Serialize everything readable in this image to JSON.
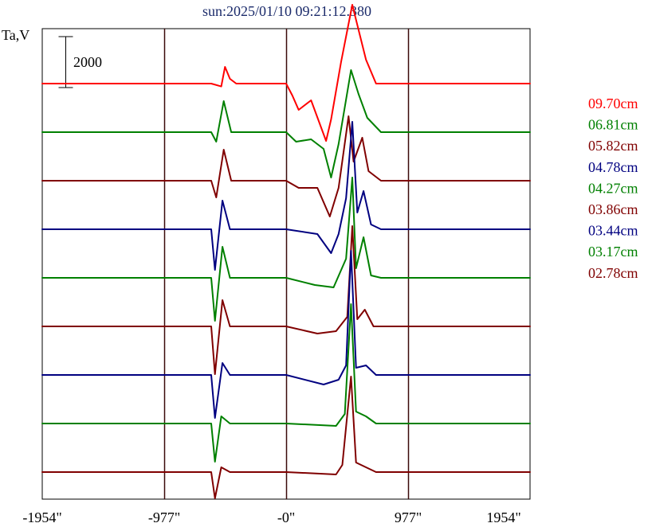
{
  "chart_data": {
    "type": "line",
    "title": "sun:2025/01/10 09:21:12.380",
    "ylabel": "Ta,V",
    "scale_bar_label": "2000",
    "scale_bar_value": 2000,
    "xlim": [
      -1954,
      1954
    ],
    "x_ticks": [
      {
        "value": -1954,
        "label": "-1954\""
      },
      {
        "value": -977,
        "label": "-977\""
      },
      {
        "value": 0,
        "label": "-0\""
      },
      {
        "value": 977,
        "label": "977\""
      },
      {
        "value": 1954,
        "label": "1954\""
      }
    ],
    "vertical_lines": [
      -977,
      0,
      977
    ],
    "grid": false,
    "legend": "right",
    "series": [
      {
        "name": "09.70cm",
        "color": "#ff0000",
        "points": [
          [
            -1954,
            0
          ],
          [
            -1000,
            0
          ],
          [
            -600,
            0
          ],
          [
            -520,
            -120
          ],
          [
            -490,
            700
          ],
          [
            -450,
            200
          ],
          [
            -400,
            0
          ],
          [
            0,
            0
          ],
          [
            50,
            -500
          ],
          [
            100,
            -1100
          ],
          [
            200,
            -700
          ],
          [
            320,
            -2400
          ],
          [
            360,
            -1500
          ],
          [
            440,
            900
          ],
          [
            530,
            3300
          ],
          [
            640,
            1000
          ],
          [
            720,
            0
          ],
          [
            1954,
            0
          ]
        ]
      },
      {
        "name": "06.81cm",
        "color": "#008000",
        "points": [
          [
            -1954,
            0
          ],
          [
            -600,
            0
          ],
          [
            -560,
            -400
          ],
          [
            -500,
            1300
          ],
          [
            -440,
            0
          ],
          [
            0,
            0
          ],
          [
            80,
            -400
          ],
          [
            200,
            -300
          ],
          [
            300,
            -700
          ],
          [
            360,
            -1900
          ],
          [
            420,
            -500
          ],
          [
            520,
            2600
          ],
          [
            580,
            1600
          ],
          [
            650,
            600
          ],
          [
            760,
            0
          ],
          [
            1954,
            0
          ]
        ]
      },
      {
        "name": "05.82cm",
        "color": "#800000",
        "points": [
          [
            -1954,
            0
          ],
          [
            -600,
            0
          ],
          [
            -560,
            -700
          ],
          [
            -500,
            1300
          ],
          [
            -440,
            0
          ],
          [
            0,
            0
          ],
          [
            100,
            -300
          ],
          [
            250,
            -300
          ],
          [
            350,
            -1500
          ],
          [
            420,
            -300
          ],
          [
            500,
            2700
          ],
          [
            540,
            800
          ],
          [
            610,
            1800
          ],
          [
            660,
            400
          ],
          [
            760,
            0
          ],
          [
            1954,
            0
          ]
        ]
      },
      {
        "name": "04.78cm",
        "color": "#000080",
        "points": [
          [
            -1954,
            0
          ],
          [
            -600,
            0
          ],
          [
            -570,
            -1700
          ],
          [
            -510,
            1200
          ],
          [
            -450,
            0
          ],
          [
            0,
            0
          ],
          [
            250,
            -200
          ],
          [
            360,
            -1000
          ],
          [
            420,
            -200
          ],
          [
            480,
            1300
          ],
          [
            530,
            4500
          ],
          [
            570,
            700
          ],
          [
            620,
            1600
          ],
          [
            680,
            200
          ],
          [
            760,
            0
          ],
          [
            1954,
            0
          ]
        ]
      },
      {
        "name": "04.27cm",
        "color": "#008000",
        "points": [
          [
            -1954,
            0
          ],
          [
            -600,
            0
          ],
          [
            -570,
            -1800
          ],
          [
            -510,
            1300
          ],
          [
            -450,
            0
          ],
          [
            0,
            0
          ],
          [
            230,
            -300
          ],
          [
            380,
            -400
          ],
          [
            480,
            800
          ],
          [
            530,
            4200
          ],
          [
            560,
            400
          ],
          [
            620,
            1700
          ],
          [
            680,
            100
          ],
          [
            760,
            0
          ],
          [
            1954,
            0
          ]
        ]
      },
      {
        "name": "03.86cm",
        "color": "#800000",
        "points": [
          [
            -1954,
            0
          ],
          [
            -600,
            0
          ],
          [
            -570,
            -2000
          ],
          [
            -510,
            1100
          ],
          [
            -450,
            0
          ],
          [
            0,
            0
          ],
          [
            250,
            -300
          ],
          [
            400,
            -200
          ],
          [
            490,
            400
          ],
          [
            530,
            4200
          ],
          [
            570,
            300
          ],
          [
            630,
            700
          ],
          [
            700,
            0
          ],
          [
            1954,
            0
          ]
        ]
      },
      {
        "name": "03.44cm",
        "color": "#000080",
        "points": [
          [
            -1954,
            0
          ],
          [
            -600,
            0
          ],
          [
            -570,
            -1800
          ],
          [
            -510,
            500
          ],
          [
            -450,
            0
          ],
          [
            0,
            0
          ],
          [
            300,
            -400
          ],
          [
            420,
            -200
          ],
          [
            480,
            400
          ],
          [
            520,
            5200
          ],
          [
            560,
            300
          ],
          [
            640,
            400
          ],
          [
            720,
            0
          ],
          [
            1954,
            0
          ]
        ]
      },
      {
        "name": "03.17cm",
        "color": "#008000",
        "points": [
          [
            -1954,
            0
          ],
          [
            -600,
            0
          ],
          [
            -570,
            -1600
          ],
          [
            -520,
            300
          ],
          [
            -450,
            0
          ],
          [
            0,
            0
          ],
          [
            400,
            -100
          ],
          [
            470,
            400
          ],
          [
            520,
            5000
          ],
          [
            560,
            500
          ],
          [
            640,
            300
          ],
          [
            720,
            0
          ],
          [
            1954,
            0
          ]
        ]
      },
      {
        "name": "02.78cm",
        "color": "#800000",
        "points": [
          [
            -1954,
            0
          ],
          [
            -600,
            0
          ],
          [
            -570,
            -1100
          ],
          [
            -520,
            200
          ],
          [
            -450,
            0
          ],
          [
            0,
            0
          ],
          [
            400,
            -100
          ],
          [
            450,
            300
          ],
          [
            520,
            4000
          ],
          [
            560,
            400
          ],
          [
            640,
            200
          ],
          [
            720,
            0
          ],
          [
            1954,
            0
          ]
        ]
      }
    ]
  }
}
